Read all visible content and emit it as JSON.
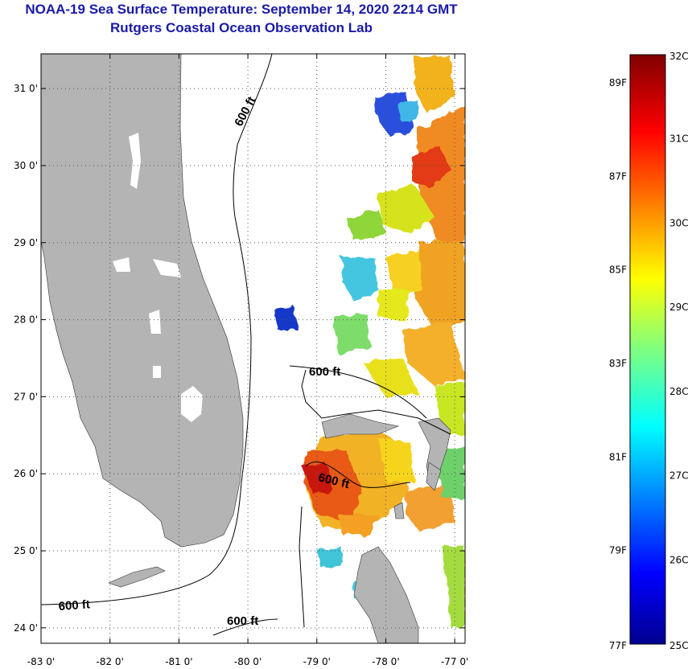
{
  "header": {
    "title": "NOAA-19 Sea Surface Temperature:  September 14, 2020 2214 GMT",
    "subtitle": "Rutgers Coastal Ocean Observation Lab"
  },
  "map": {
    "lon_range": [
      -83,
      -76.85
    ],
    "lat_range": [
      23.8,
      31.45
    ],
    "lon_ticks": [
      "-83 0'",
      "-82 0'",
      "-81 0'",
      "-80 0'",
      "-79 0'",
      "-78 0'",
      "-77 0'"
    ],
    "lat_ticks": [
      "24 0'",
      "25 0'",
      "26 0'",
      "27 0'",
      "28 0'",
      "29 0'",
      "30 0'",
      "31 0'"
    ],
    "grid": true,
    "contour_labels": [
      "600 ft",
      "600 ft",
      "600 ft",
      "600 ft",
      "600 ft"
    ],
    "colors": {
      "land": "#b4b4b4",
      "ocean_no_data": "#ffffff",
      "grid": "#555555"
    }
  },
  "colorbar": {
    "celsius_labels": [
      "32C",
      "31C",
      "30C",
      "29C",
      "28C",
      "27C",
      "26C",
      "25C"
    ],
    "fahrenheit_labels": [
      "89F",
      "87F",
      "85F",
      "83F",
      "81F",
      "79F",
      "77F"
    ],
    "range_c": [
      25,
      32
    ],
    "colormap": "jet"
  }
}
